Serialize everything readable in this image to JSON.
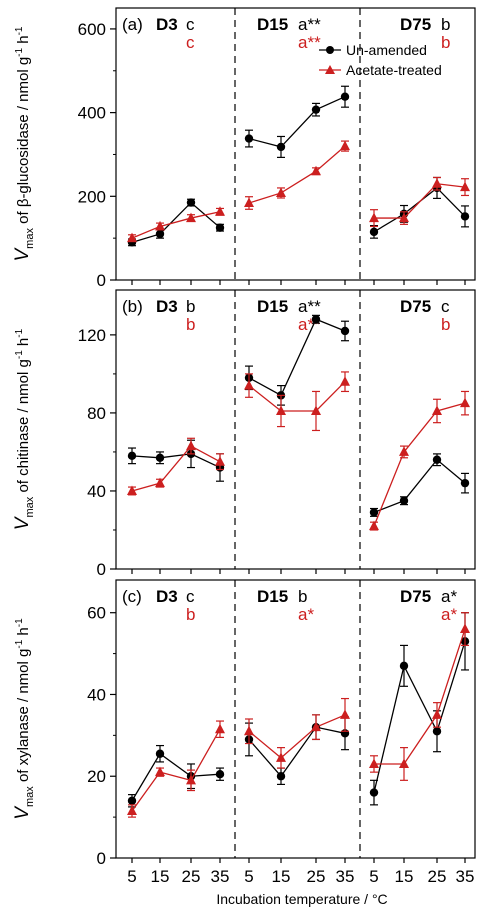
{
  "colors": {
    "un_amended": "#000000",
    "acetate_treated": "#cc1f1f",
    "axis": "#000000"
  },
  "chart_data": {
    "type": "line",
    "x_axis_label": "Incubation temperature / °C",
    "x_ticks": [
      5,
      15,
      25,
      35
    ],
    "legend": {
      "placement": "top-right of panel (a)",
      "entries": [
        {
          "name": "Un-amended",
          "color": "#000000",
          "marker": "circle"
        },
        {
          "name": "Acetate-treated",
          "color": "#cc1f1f",
          "marker": "triangle"
        }
      ]
    },
    "panels": [
      {
        "label": "(a)",
        "ylabel_main": "V",
        "ylabel_sub": "max",
        "ylabel_rest": " of β-glucosidase / nmol g",
        "ylabel_unit_sup1": "-1",
        "ylabel_h": " h",
        "ylabel_unit_sup2": "-1",
        "ylim": [
          0,
          650
        ],
        "yticks": [
          0,
          200,
          400,
          600
        ],
        "groups": [
          {
            "name": "D3",
            "sig_black": "c",
            "sig_red": "c",
            "x": [
              5,
              15,
              25,
              35
            ],
            "un_amended": [
              90,
              110,
              185,
              125
            ],
            "un_amended_err": [
              8,
              10,
              8,
              8
            ],
            "acetate_treated": [
              100,
              128,
              148,
              163
            ],
            "acetate_treated_err": [
              8,
              8,
              8,
              8
            ]
          },
          {
            "name": "D15",
            "sig_black": "a**",
            "sig_red": "a**",
            "x": [
              5,
              15,
              25,
              35
            ],
            "un_amended": [
              338,
              318,
              407,
              438
            ],
            "un_amended_err": [
              20,
              25,
              15,
              25
            ],
            "acetate_treated": [
              184,
              208,
              260,
              320
            ],
            "acetate_treated_err": [
              15,
              12,
              8,
              12
            ]
          },
          {
            "name": "D75",
            "sig_black": "b",
            "sig_red": "b",
            "x": [
              5,
              15,
              25,
              35
            ],
            "un_amended": [
              115,
              158,
              220,
              152
            ],
            "un_amended_err": [
              15,
              20,
              25,
              25
            ],
            "acetate_treated": [
              148,
              148,
              230,
              222
            ],
            "acetate_treated_err": [
              20,
              15,
              15,
              20
            ]
          }
        ]
      },
      {
        "label": "(b)",
        "ylabel_main": "V",
        "ylabel_sub": "max",
        "ylabel_rest": " of chitinase / nmol g",
        "ylabel_unit_sup1": "-1",
        "ylabel_h": " h",
        "ylabel_unit_sup2": "-1",
        "ylim": [
          0,
          143
        ],
        "yticks": [
          0,
          40,
          80,
          120
        ],
        "groups": [
          {
            "name": "D3",
            "sig_black": "b",
            "sig_red": "b",
            "x": [
              5,
              15,
              25,
              35
            ],
            "un_amended": [
              58,
              57,
              59,
              52
            ],
            "un_amended_err": [
              4,
              3,
              7,
              7
            ],
            "acetate_treated": [
              40,
              44,
              63,
              55
            ],
            "acetate_treated_err": [
              2,
              2,
              4,
              4
            ]
          },
          {
            "name": "D15",
            "sig_black": "a**",
            "sig_red": "a**",
            "x": [
              5,
              15,
              25,
              35
            ],
            "un_amended": [
              98,
              89,
              128,
              122
            ],
            "un_amended_err": [
              6,
              5,
              2,
              5
            ],
            "acetate_treated": [
              94,
              81,
              81,
              96
            ],
            "acetate_treated_err": [
              6,
              8,
              10,
              5
            ]
          },
          {
            "name": "D75",
            "sig_black": "c",
            "sig_red": "b",
            "x": [
              5,
              15,
              25,
              35
            ],
            "un_amended": [
              29,
              35,
              56,
              44
            ],
            "un_amended_err": [
              2,
              2,
              3,
              5
            ],
            "acetate_treated": [
              22,
              60,
              81,
              85
            ],
            "acetate_treated_err": [
              2,
              3,
              6,
              6
            ]
          }
        ]
      },
      {
        "label": "(c)",
        "ylabel_main": "V",
        "ylabel_sub": "max",
        "ylabel_rest": " of xylanase / nmol g",
        "ylabel_unit_sup1": "-1",
        "ylabel_h": " h",
        "ylabel_unit_sup2": "-1",
        "ylim": [
          0,
          68
        ],
        "yticks": [
          0,
          20,
          40,
          60
        ],
        "groups": [
          {
            "name": "D3",
            "sig_black": "c",
            "sig_red": "b",
            "x": [
              5,
              15,
              25,
              35
            ],
            "un_amended": [
              14,
              25.5,
              20,
              20.5
            ],
            "un_amended_err": [
              1.5,
              2,
              3,
              1.5
            ],
            "acetate_treated": [
              11.5,
              21,
              19,
              31.5
            ],
            "acetate_treated_err": [
              1.5,
              1,
              2.5,
              2
            ]
          },
          {
            "name": "D15",
            "sig_black": "b",
            "sig_red": "a*",
            "x": [
              5,
              15,
              25,
              35
            ],
            "un_amended": [
              29,
              20,
              32,
              30.5
            ],
            "un_amended_err": [
              4,
              2,
              3,
              4
            ],
            "acetate_treated": [
              31,
              24.5,
              32,
              35
            ],
            "acetate_treated_err": [
              3,
              2.5,
              3,
              4
            ]
          },
          {
            "name": "D75",
            "sig_black": "a*",
            "sig_red": "a*",
            "x": [
              5,
              15,
              25,
              35
            ],
            "un_amended": [
              16,
              47,
              31,
              53
            ],
            "un_amended_err": [
              3,
              5,
              5,
              7
            ],
            "acetate_treated": [
              23,
              23,
              35,
              56
            ],
            "acetate_treated_err": [
              2,
              4,
              3,
              4
            ]
          }
        ]
      }
    ]
  }
}
